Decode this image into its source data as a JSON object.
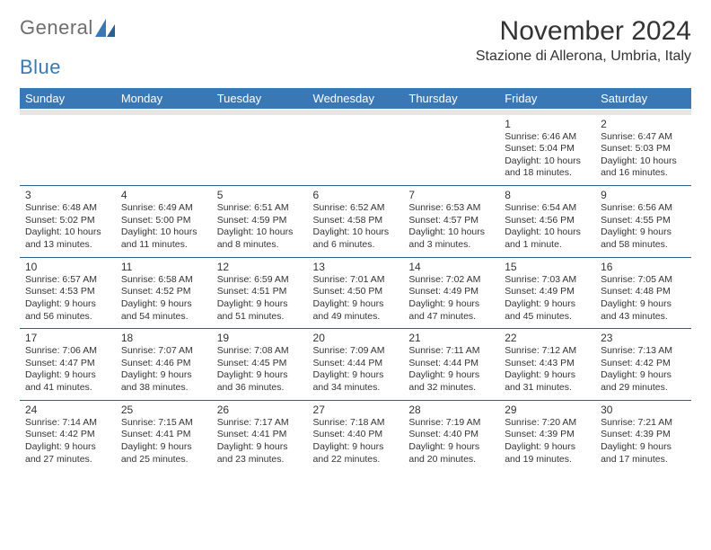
{
  "logo": {
    "text1": "General",
    "text2": "Blue"
  },
  "title": "November 2024",
  "location": "Stazione di Allerona, Umbria, Italy",
  "colors": {
    "header_bg": "#3a78b5",
    "header_text": "#ffffff",
    "band_bg": "#e6e6e6",
    "rule": "#2b5f8f",
    "text": "#333333",
    "logo_gray": "#6e6e6e",
    "logo_blue": "#3a78b5"
  },
  "dow": [
    "Sunday",
    "Monday",
    "Tuesday",
    "Wednesday",
    "Thursday",
    "Friday",
    "Saturday"
  ],
  "weeks": [
    [
      null,
      null,
      null,
      null,
      null,
      {
        "d": "1",
        "sr": "6:46 AM",
        "ss": "5:04 PM",
        "dl": "Daylight: 10 hours and 18 minutes."
      },
      {
        "d": "2",
        "sr": "6:47 AM",
        "ss": "5:03 PM",
        "dl": "Daylight: 10 hours and 16 minutes."
      }
    ],
    [
      {
        "d": "3",
        "sr": "6:48 AM",
        "ss": "5:02 PM",
        "dl": "Daylight: 10 hours and 13 minutes."
      },
      {
        "d": "4",
        "sr": "6:49 AM",
        "ss": "5:00 PM",
        "dl": "Daylight: 10 hours and 11 minutes."
      },
      {
        "d": "5",
        "sr": "6:51 AM",
        "ss": "4:59 PM",
        "dl": "Daylight: 10 hours and 8 minutes."
      },
      {
        "d": "6",
        "sr": "6:52 AM",
        "ss": "4:58 PM",
        "dl": "Daylight: 10 hours and 6 minutes."
      },
      {
        "d": "7",
        "sr": "6:53 AM",
        "ss": "4:57 PM",
        "dl": "Daylight: 10 hours and 3 minutes."
      },
      {
        "d": "8",
        "sr": "6:54 AM",
        "ss": "4:56 PM",
        "dl": "Daylight: 10 hours and 1 minute."
      },
      {
        "d": "9",
        "sr": "6:56 AM",
        "ss": "4:55 PM",
        "dl": "Daylight: 9 hours and 58 minutes."
      }
    ],
    [
      {
        "d": "10",
        "sr": "6:57 AM",
        "ss": "4:53 PM",
        "dl": "Daylight: 9 hours and 56 minutes."
      },
      {
        "d": "11",
        "sr": "6:58 AM",
        "ss": "4:52 PM",
        "dl": "Daylight: 9 hours and 54 minutes."
      },
      {
        "d": "12",
        "sr": "6:59 AM",
        "ss": "4:51 PM",
        "dl": "Daylight: 9 hours and 51 minutes."
      },
      {
        "d": "13",
        "sr": "7:01 AM",
        "ss": "4:50 PM",
        "dl": "Daylight: 9 hours and 49 minutes."
      },
      {
        "d": "14",
        "sr": "7:02 AM",
        "ss": "4:49 PM",
        "dl": "Daylight: 9 hours and 47 minutes."
      },
      {
        "d": "15",
        "sr": "7:03 AM",
        "ss": "4:49 PM",
        "dl": "Daylight: 9 hours and 45 minutes."
      },
      {
        "d": "16",
        "sr": "7:05 AM",
        "ss": "4:48 PM",
        "dl": "Daylight: 9 hours and 43 minutes."
      }
    ],
    [
      {
        "d": "17",
        "sr": "7:06 AM",
        "ss": "4:47 PM",
        "dl": "Daylight: 9 hours and 41 minutes."
      },
      {
        "d": "18",
        "sr": "7:07 AM",
        "ss": "4:46 PM",
        "dl": "Daylight: 9 hours and 38 minutes."
      },
      {
        "d": "19",
        "sr": "7:08 AM",
        "ss": "4:45 PM",
        "dl": "Daylight: 9 hours and 36 minutes."
      },
      {
        "d": "20",
        "sr": "7:09 AM",
        "ss": "4:44 PM",
        "dl": "Daylight: 9 hours and 34 minutes."
      },
      {
        "d": "21",
        "sr": "7:11 AM",
        "ss": "4:44 PM",
        "dl": "Daylight: 9 hours and 32 minutes."
      },
      {
        "d": "22",
        "sr": "7:12 AM",
        "ss": "4:43 PM",
        "dl": "Daylight: 9 hours and 31 minutes."
      },
      {
        "d": "23",
        "sr": "7:13 AM",
        "ss": "4:42 PM",
        "dl": "Daylight: 9 hours and 29 minutes."
      }
    ],
    [
      {
        "d": "24",
        "sr": "7:14 AM",
        "ss": "4:42 PM",
        "dl": "Daylight: 9 hours and 27 minutes."
      },
      {
        "d": "25",
        "sr": "7:15 AM",
        "ss": "4:41 PM",
        "dl": "Daylight: 9 hours and 25 minutes."
      },
      {
        "d": "26",
        "sr": "7:17 AM",
        "ss": "4:41 PM",
        "dl": "Daylight: 9 hours and 23 minutes."
      },
      {
        "d": "27",
        "sr": "7:18 AM",
        "ss": "4:40 PM",
        "dl": "Daylight: 9 hours and 22 minutes."
      },
      {
        "d": "28",
        "sr": "7:19 AM",
        "ss": "4:40 PM",
        "dl": "Daylight: 9 hours and 20 minutes."
      },
      {
        "d": "29",
        "sr": "7:20 AM",
        "ss": "4:39 PM",
        "dl": "Daylight: 9 hours and 19 minutes."
      },
      {
        "d": "30",
        "sr": "7:21 AM",
        "ss": "4:39 PM",
        "dl": "Daylight: 9 hours and 17 minutes."
      }
    ]
  ]
}
